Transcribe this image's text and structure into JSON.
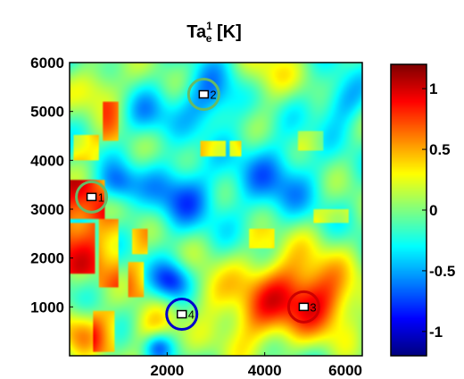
{
  "chart_data": {
    "type": "heatmap",
    "title": {
      "base": "Ta",
      "sup": "1",
      "sub": "e",
      "unit": " [K]"
    },
    "x_ticks": [
      2000,
      4000,
      6000
    ],
    "x_tick_labels": [
      "2000",
      "4000",
      "6000"
    ],
    "y_ticks": [
      1000,
      2000,
      3000,
      4000,
      5000,
      6000
    ],
    "y_tick_labels": [
      "1000",
      "2000",
      "3000",
      "4000",
      "5000",
      "6000"
    ],
    "xlim": [
      0,
      6000
    ],
    "ylim": [
      0,
      6000
    ],
    "colormap": "jet",
    "color_range": [
      -1.2,
      1.2
    ],
    "colorbar_ticks": [
      1,
      0.5,
      0,
      -0.5,
      -1
    ],
    "colorbar_tick_labels": [
      "1",
      "0.5",
      "0",
      "-0.5",
      "-1"
    ],
    "markers": [
      {
        "label": "1",
        "x": 450,
        "y": 3250,
        "circle_color": "#66bb66"
      },
      {
        "label": "2",
        "x": 2750,
        "y": 5350,
        "circle_color": "#66bb66"
      },
      {
        "label": "3",
        "x": 4800,
        "y": 1000,
        "circle_color": "#cc0000"
      },
      {
        "label": "4",
        "x": 2300,
        "y": 850,
        "circle_color": "#0000cc"
      }
    ],
    "features": [
      {
        "kind": "rect",
        "x0": 0,
        "x1": 700,
        "y0": 2800,
        "y1": 3600,
        "value": 0.9
      },
      {
        "kind": "rect",
        "x0": 0,
        "x1": 500,
        "y0": 1700,
        "y1": 2700,
        "value": 0.85
      },
      {
        "kind": "rect",
        "x0": 600,
        "x1": 1000,
        "y0": 1400,
        "y1": 2800,
        "value": 0.6
      },
      {
        "kind": "rect",
        "x0": 700,
        "x1": 1000,
        "y0": 4400,
        "y1": 5200,
        "value": 0.55
      },
      {
        "kind": "rect",
        "x0": 100,
        "x1": 600,
        "y0": 4000,
        "y1": 4500,
        "value": 0.45
      },
      {
        "kind": "rect",
        "x0": 1200,
        "x1": 1500,
        "y0": 1200,
        "y1": 1900,
        "value": 0.55
      },
      {
        "kind": "rect",
        "x0": 1300,
        "x1": 1600,
        "y0": 2100,
        "y1": 2600,
        "value": 0.5
      },
      {
        "kind": "rect",
        "x0": 2700,
        "x1": 3200,
        "y0": 4100,
        "y1": 4400,
        "value": 0.65
      },
      {
        "kind": "rect",
        "x0": 3300,
        "x1": 3500,
        "y0": 4100,
        "y1": 4400,
        "value": 0.6
      },
      {
        "kind": "rect",
        "x0": 5000,
        "x1": 5700,
        "y0": 2700,
        "y1": 3000,
        "value": 0.4
      },
      {
        "kind": "rect",
        "x0": 3700,
        "x1": 4200,
        "y0": 2200,
        "y1": 2600,
        "value": 0.35
      },
      {
        "kind": "rect",
        "x0": 4700,
        "x1": 5200,
        "y0": 4200,
        "y1": 4600,
        "value": 0.3
      },
      {
        "kind": "rect",
        "x0": 500,
        "x1": 900,
        "y0": 100,
        "y1": 900,
        "value": 0.45
      },
      {
        "kind": "blob",
        "x": 4500,
        "y": 1350,
        "r": 900,
        "value": 0.75
      },
      {
        "kind": "blob",
        "x": 5300,
        "y": 1100,
        "r": 700,
        "value": 0.6
      },
      {
        "kind": "blob",
        "x": 3700,
        "y": 700,
        "r": 700,
        "value": 0.45
      },
      {
        "kind": "blob",
        "x": 1700,
        "y": 500,
        "r": 500,
        "value": 0.4
      },
      {
        "kind": "blob",
        "x": 200,
        "y": 500,
        "r": 500,
        "value": 0.55
      },
      {
        "kind": "blob",
        "x": 2800,
        "y": 1300,
        "r": 500,
        "value": 0.35
      },
      {
        "kind": "blob",
        "x": 2300,
        "y": 3300,
        "r": 700,
        "value": -0.55
      },
      {
        "kind": "blob",
        "x": 4200,
        "y": 3600,
        "r": 900,
        "value": -0.45
      },
      {
        "kind": "blob",
        "x": 2900,
        "y": 5300,
        "r": 600,
        "value": -0.6
      },
      {
        "kind": "blob",
        "x": 2100,
        "y": 1500,
        "r": 400,
        "value": -0.7
      },
      {
        "kind": "blob",
        "x": 1000,
        "y": 3500,
        "r": 400,
        "value": -0.55
      },
      {
        "kind": "blob",
        "x": 5600,
        "y": 5200,
        "r": 500,
        "value": -0.45
      },
      {
        "kind": "blob",
        "x": 1600,
        "y": 4900,
        "r": 500,
        "value": -0.35
      },
      {
        "kind": "blob",
        "x": 1800,
        "y": 200,
        "r": 300,
        "value": -0.6
      },
      {
        "kind": "blob",
        "x": 4000,
        "y": 5700,
        "r": 600,
        "value": 0.35
      },
      {
        "kind": "blob",
        "x": 600,
        "y": 5500,
        "r": 500,
        "value": 0.4
      }
    ]
  }
}
